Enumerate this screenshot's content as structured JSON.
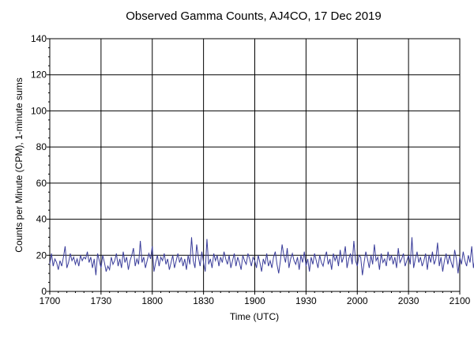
{
  "chart_data": {
    "type": "line",
    "title": "Observed Gamma Counts, AJ4CO, 17 Dec 2019",
    "xlabel": "Time (UTC)",
    "ylabel": "Counts per Minute (CPM), 1-minute sums",
    "x_ticks": [
      "1700",
      "1730",
      "1800",
      "1830",
      "1900",
      "1930",
      "2000",
      "2030",
      "2100"
    ],
    "y_ticks": [
      "0",
      "20",
      "40",
      "60",
      "80",
      "100",
      "120",
      "140"
    ],
    "xlim": [
      "17:00",
      "21:00"
    ],
    "ylim": [
      0,
      140
    ],
    "grid": true,
    "line_color": "#3a3d9a",
    "series": [
      {
        "x_start": "17:00",
        "x_step_minutes": 1,
        "values": [
          15,
          21,
          14,
          18,
          16,
          12,
          17,
          14,
          19,
          25,
          13,
          16,
          21,
          17,
          19,
          15,
          18,
          14,
          20,
          17,
          19,
          18,
          22,
          16,
          19,
          13,
          18,
          9,
          21,
          17,
          13,
          20,
          16,
          11,
          14,
          12,
          19,
          15,
          17,
          21,
          14,
          18,
          13,
          22,
          16,
          19,
          12,
          17,
          20,
          24,
          14,
          18,
          15,
          28,
          16,
          19,
          13,
          17,
          21,
          18,
          25,
          11,
          16,
          20,
          14,
          19,
          17,
          21,
          15,
          18,
          12,
          16,
          20,
          13,
          17,
          21,
          16,
          19,
          14,
          18,
          12,
          20,
          15,
          30,
          17,
          13,
          26,
          19,
          14,
          22,
          16,
          11,
          29,
          15,
          18,
          13,
          21,
          17,
          20,
          14,
          19,
          16,
          22,
          18,
          15,
          20,
          13,
          17,
          21,
          14,
          19,
          16,
          12,
          20,
          17,
          15,
          21,
          18,
          14,
          19,
          17,
          13,
          20,
          16,
          11,
          18,
          15,
          21,
          14,
          17,
          13,
          19,
          22,
          15,
          10,
          17,
          26,
          20,
          16,
          24,
          13,
          18,
          21,
          17,
          15,
          19,
          12,
          20,
          16,
          22,
          14,
          18,
          11,
          19,
          15,
          21,
          17,
          13,
          20,
          16,
          14,
          19,
          22,
          15,
          18,
          12,
          21,
          17,
          20,
          14,
          23,
          16,
          19,
          25,
          13,
          18,
          21,
          15,
          28,
          17,
          14,
          20,
          19,
          9,
          16,
          22,
          18,
          13,
          20,
          15,
          26,
          17,
          19,
          12,
          21,
          16,
          18,
          14,
          22,
          17,
          20,
          15,
          19,
          13,
          24,
          16,
          18,
          21,
          14,
          17,
          20,
          15,
          30,
          13,
          18,
          22,
          16,
          19,
          14,
          17,
          21,
          12,
          20,
          16,
          22,
          15,
          18,
          27,
          14,
          19,
          11,
          17,
          21,
          15,
          20,
          16,
          13,
          23,
          18,
          10,
          19,
          15,
          22,
          17,
          14,
          20,
          16,
          25,
          13,
          19,
          22,
          15,
          18,
          16,
          20,
          23,
          17,
          14,
          24,
          16
        ]
      }
    ]
  }
}
